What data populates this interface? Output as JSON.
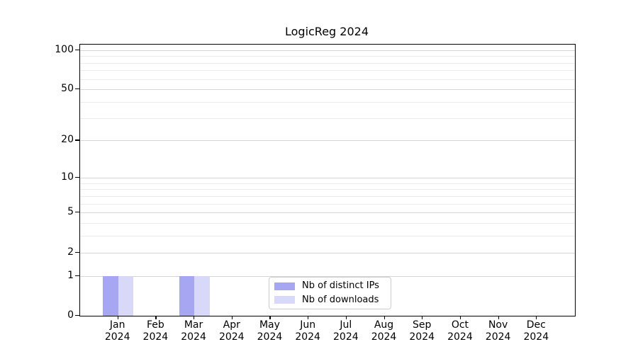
{
  "title": "LogicReg 2024",
  "colors": {
    "distinct_ips": "#a6a6f2",
    "downloads": "#d8d8f8",
    "grid_major": "#d4d4d4",
    "grid_minor": "#ebebeb",
    "axis": "#000000",
    "legend_border": "#cccccc",
    "text": "#000000"
  },
  "legend": {
    "position": "lower center",
    "items": [
      {
        "label": "Nb of distinct IPs",
        "color": "#a6a6f2"
      },
      {
        "label": "Nb of downloads",
        "color": "#d8d8f8"
      }
    ]
  },
  "chart_data": {
    "type": "bar",
    "title": "LogicReg 2024",
    "scale": "log1p",
    "months": [
      "Jan",
      "Feb",
      "Mar",
      "Apr",
      "May",
      "Jun",
      "Jul",
      "Aug",
      "Sep",
      "Oct",
      "Nov",
      "Dec"
    ],
    "year": "2024",
    "categories": [
      "Jan 2024",
      "Feb 2024",
      "Mar 2024",
      "Apr 2024",
      "May 2024",
      "Jun 2024",
      "Jul 2024",
      "Aug 2024",
      "Sep 2024",
      "Oct 2024",
      "Nov 2024",
      "Dec 2024"
    ],
    "series": [
      {
        "name": "Nb of distinct IPs",
        "color": "#a6a6f2",
        "values": [
          1,
          0,
          1,
          0,
          0,
          0,
          0,
          0,
          0,
          0,
          0,
          0
        ]
      },
      {
        "name": "Nb of downloads",
        "color": "#d8d8f8",
        "values": [
          1,
          0,
          1,
          0,
          0,
          0,
          0,
          0,
          0,
          0,
          0,
          0
        ]
      }
    ],
    "y_ticks_major": [
      0,
      1,
      2,
      5,
      10,
      20,
      50,
      100
    ],
    "y_ticks_minor": [
      3,
      4,
      6,
      7,
      8,
      9,
      30,
      40,
      60,
      70,
      80,
      90
    ],
    "ylim": [
      0,
      110
    ],
    "xlabel": "",
    "ylabel": "",
    "grid": true,
    "legend_position": "lower center"
  }
}
